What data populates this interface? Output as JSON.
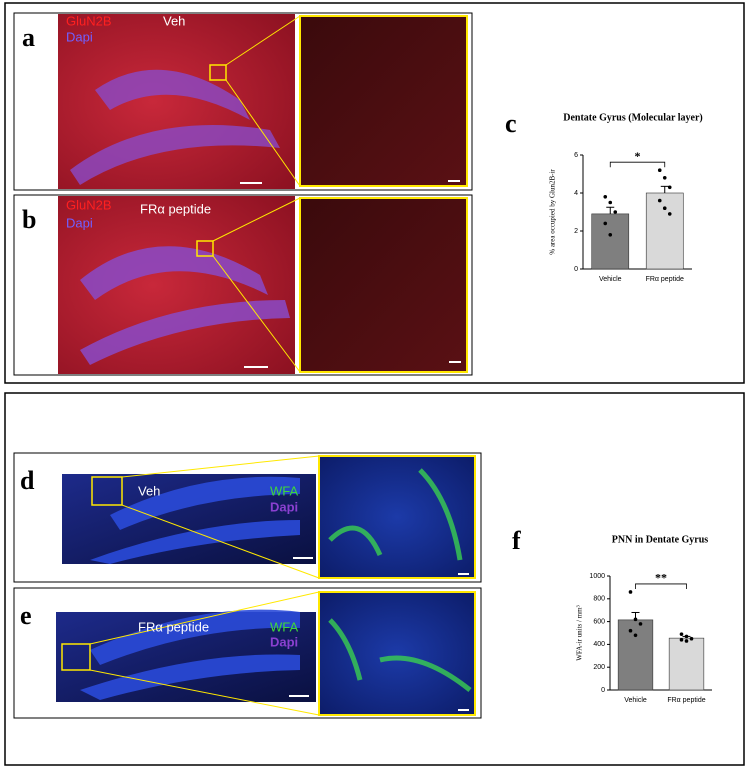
{
  "panels": [
    {
      "label": "a",
      "stain": "GluN2B",
      "counterstain": "Dapi",
      "condition": "Veh"
    },
    {
      "label": "b",
      "stain": "GluN2B",
      "counterstain": "Dapi",
      "condition": "FRα peptide"
    },
    {
      "label": "d",
      "stain": "WFA",
      "counterstain": "Dapi",
      "condition": "Veh"
    },
    {
      "label": "e",
      "stain": "WFA",
      "counterstain": "Dapi",
      "condition": "FRα peptide"
    }
  ],
  "chart_data": [
    {
      "type": "bar",
      "panel_label": "c",
      "title": "Dentate Gyrus (Molecular layer)",
      "y_label": "% area occupied by Glun2B-ir",
      "categories": [
        "Vehicle",
        "FRα peptide"
      ],
      "values": [
        2.9,
        4.0
      ],
      "errors": [
        0.35,
        0.35
      ],
      "points": [
        [
          3.8,
          3.5,
          3.0,
          2.4,
          1.8
        ],
        [
          5.2,
          4.8,
          4.3,
          3.6,
          3.2,
          2.9
        ]
      ],
      "colors": [
        "#7f7f7f",
        "#d9d9d9"
      ],
      "ylim": [
        0,
        6
      ],
      "yticks": [
        0,
        2,
        4,
        6
      ],
      "significance": "*"
    },
    {
      "type": "bar",
      "panel_label": "f",
      "title": "PNN in Dentate Gyrus",
      "y_label": "WFA-ir units / mm³",
      "categories": [
        "Vehicle",
        "FRα peptide"
      ],
      "values": [
        615,
        455
      ],
      "errors": [
        65,
        15
      ],
      "points": [
        [
          860,
          620,
          580,
          520,
          480
        ],
        [
          490,
          470,
          450,
          440,
          430
        ]
      ],
      "colors": [
        "#7f7f7f",
        "#d9d9d9"
      ],
      "ylim": [
        0,
        1000
      ],
      "yticks": [
        0,
        200,
        400,
        600,
        800,
        1000
      ],
      "significance": "**"
    }
  ]
}
